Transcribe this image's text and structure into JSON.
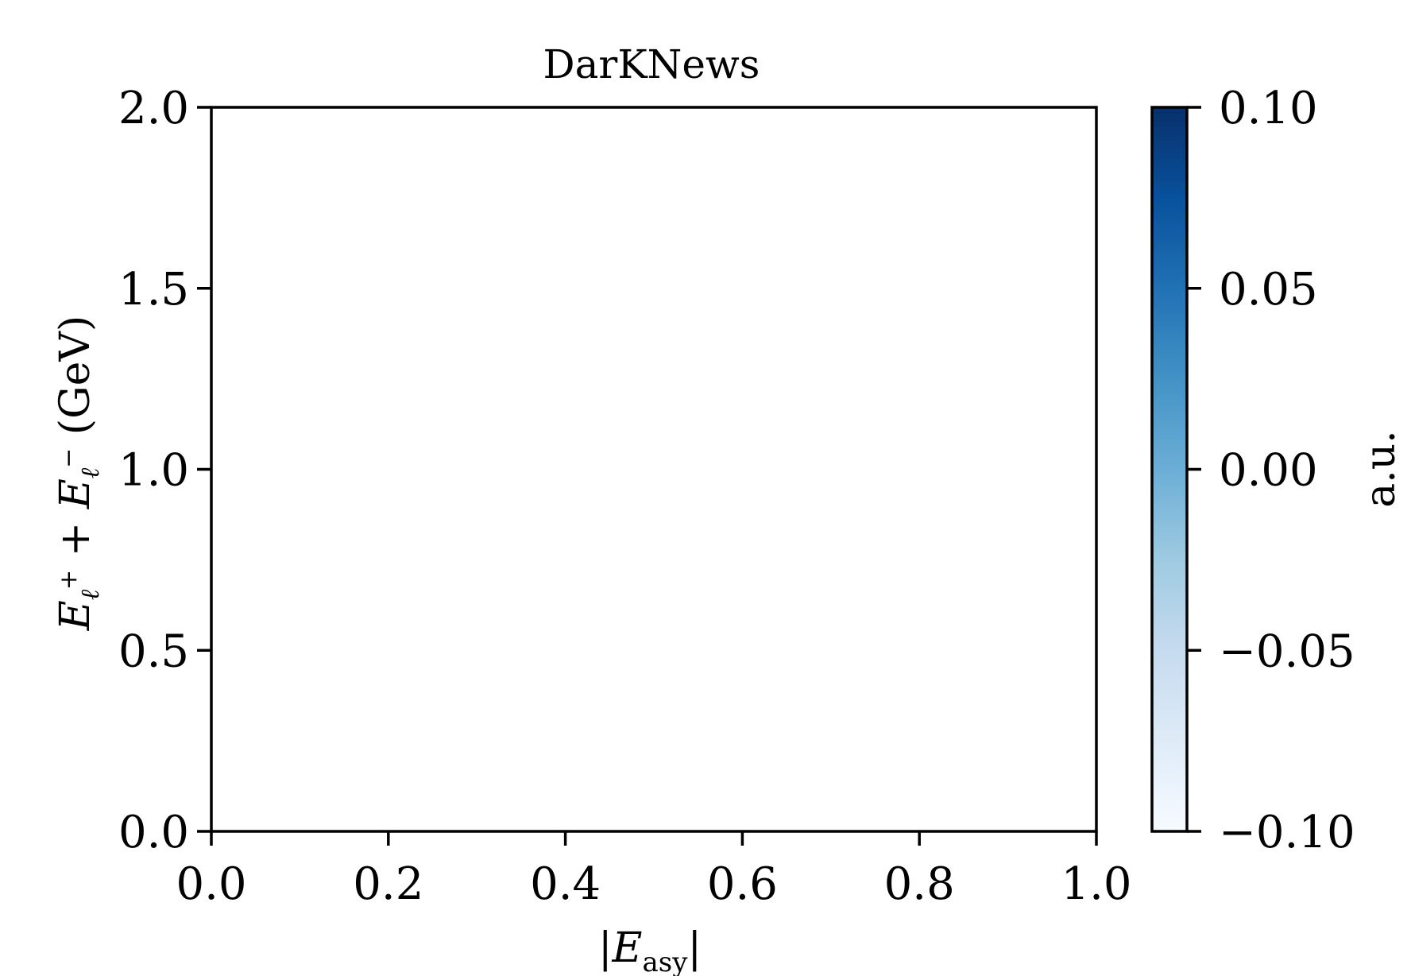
{
  "chart_data": {
    "type": "heatmap",
    "title": "DarKNews",
    "xlabel": "|E",
    "xlabel_sub": "asy",
    "xlabel_end": "|",
    "ylabel_parts": {
      "e1": "E",
      "sub1": "ℓ",
      "sup1": "+",
      "plus": " + ",
      "e2": "E",
      "sub2": "ℓ",
      "sup2": "−",
      "unit": "  (GeV)"
    },
    "xlim": [
      0.0,
      1.0
    ],
    "ylim": [
      0.0,
      2.0
    ],
    "xticks": [
      "0.0",
      "0.2",
      "0.4",
      "0.6",
      "0.8",
      "1.0"
    ],
    "yticks": [
      "0.0",
      "0.5",
      "1.0",
      "1.5",
      "2.0"
    ],
    "values": [],
    "colorbar": {
      "label": "a.u.",
      "range": [
        -0.1,
        0.1
      ],
      "ticks": [
        "−0.10",
        "−0.05",
        "0.00",
        "0.05",
        "0.10"
      ],
      "colormap": "Blues",
      "color_low": "#f7fbff",
      "color_high": "#08306b"
    },
    "grid": false
  }
}
